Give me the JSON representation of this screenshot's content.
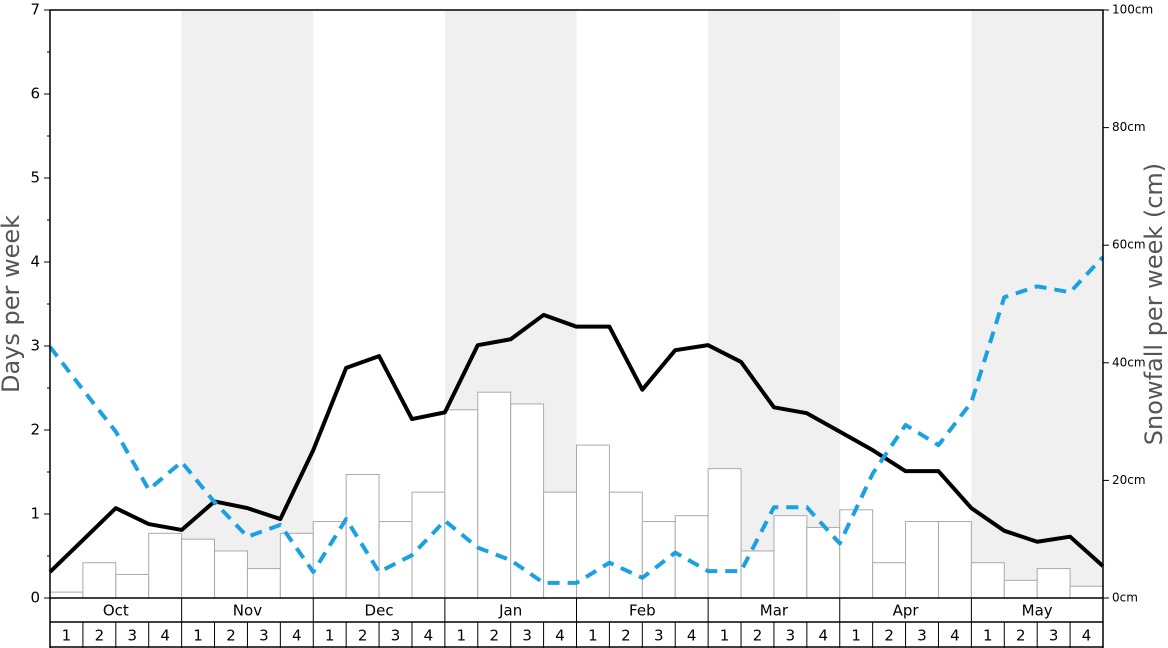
{
  "chart_data": {
    "type": "bar",
    "y_label": "Days per week",
    "y2_label": "Snowfall per week (cm)",
    "months": [
      "Oct",
      "Nov",
      "Dec",
      "Jan",
      "Feb",
      "Mar",
      "Apr",
      "May"
    ],
    "categories": [
      "1",
      "2",
      "3",
      "4",
      "1",
      "2",
      "3",
      "4",
      "1",
      "2",
      "3",
      "4",
      "1",
      "2",
      "3",
      "4",
      "1",
      "2",
      "3",
      "4",
      "1",
      "2",
      "3",
      "4",
      "1",
      "2",
      "3",
      "4",
      "1",
      "2",
      "3",
      "4"
    ],
    "ylim": [
      0,
      7
    ],
    "yticks": [
      0,
      1,
      2,
      3,
      4,
      5,
      6,
      7
    ],
    "y2lim": [
      0,
      100
    ],
    "y2ticks": [
      {
        "value": 0,
        "label": "0cm"
      },
      {
        "value": 20,
        "label": "20cm"
      },
      {
        "value": 40,
        "label": "40cm"
      },
      {
        "value": 60,
        "label": "60cm"
      },
      {
        "value": 80,
        "label": "80cm"
      },
      {
        "value": 100,
        "label": "100cm"
      }
    ],
    "series": [
      {
        "color": "#ffffff",
        "axis": "y2",
        "values": [
          1,
          6,
          4,
          11,
          10,
          8,
          5,
          11,
          13,
          21,
          13,
          18,
          32,
          35,
          33,
          18,
          26,
          18,
          13,
          14,
          22,
          8,
          14,
          12,
          15,
          6,
          13,
          13,
          6,
          3,
          5,
          2
        ]
      }
    ],
    "line_series": [
      {
        "color": "#000000",
        "style": "solid",
        "values": [
          0.31,
          0.69,
          1.07,
          0.88,
          0.81,
          1.15,
          1.07,
          0.94,
          1.76,
          2.74,
          2.88,
          2.13,
          2.21,
          3.01,
          3.08,
          3.37,
          3.23,
          3.23,
          2.48,
          2.95,
          3.01,
          2.81,
          2.27,
          2.2,
          1.98,
          1.76,
          1.51,
          1.51,
          1.07,
          0.8,
          0.67,
          0.73,
          0.38
        ]
      },
      {
        "color": "#1ba1e2",
        "style": "dashed",
        "values": [
          2.99,
          2.48,
          1.98,
          1.29,
          1.62,
          1.14,
          0.73,
          0.87,
          0.31,
          0.94,
          0.31,
          0.51,
          0.92,
          0.6,
          0.45,
          0.18,
          0.18,
          0.42,
          0.24,
          0.54,
          0.32,
          0.32,
          1.08,
          1.08,
          0.65,
          1.48,
          2.06,
          1.82,
          2.33,
          3.58,
          3.71,
          3.64,
          4.06
        ]
      }
    ]
  }
}
